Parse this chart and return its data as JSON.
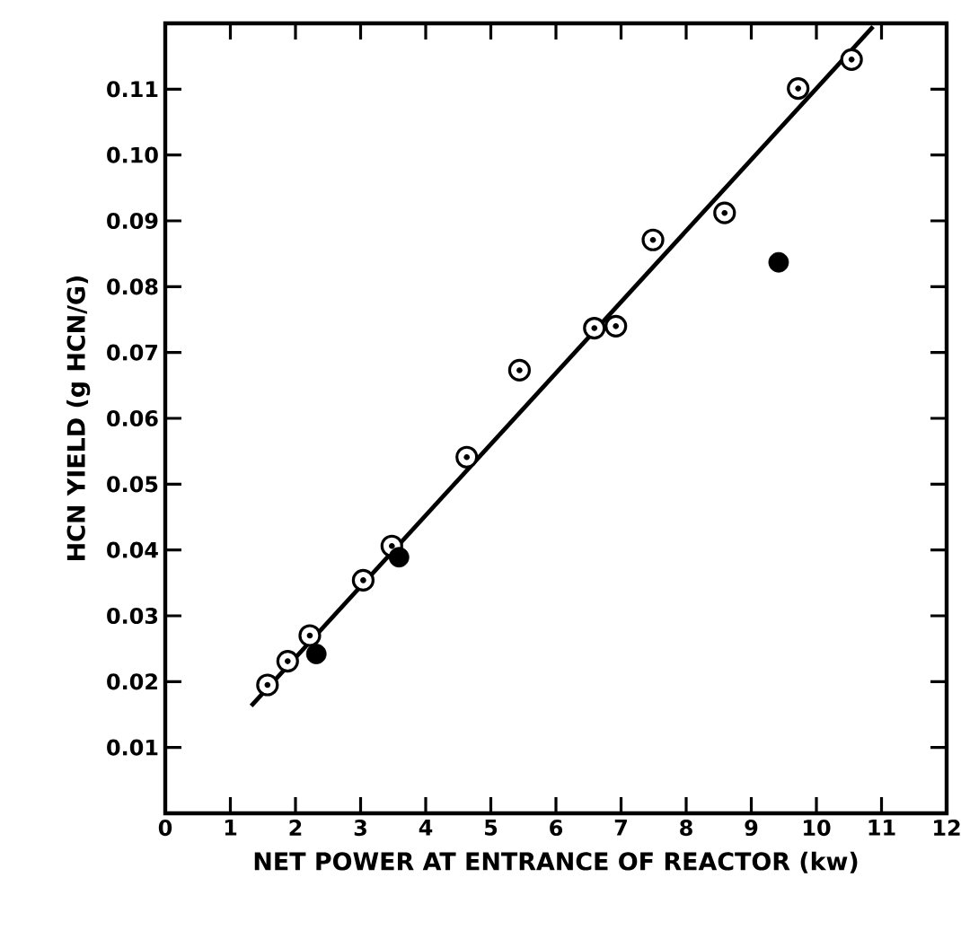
{
  "chart_data": {
    "type": "scatter",
    "xlabel": "NET POWER AT ENTRANCE OF REACTOR (kw)",
    "ylabel": "HCN YIELD (g HCN/G)",
    "xlim": [
      0,
      12
    ],
    "ylim": [
      0,
      0.12
    ],
    "xticks": [
      0,
      1,
      2,
      3,
      4,
      5,
      6,
      7,
      8,
      9,
      10,
      11,
      12
    ],
    "yticks": [
      {
        "value": 0,
        "label": null
      },
      0.01,
      0.02,
      0.03,
      0.04,
      0.05,
      0.06,
      0.07,
      0.08,
      0.09,
      {
        "value": 0.1,
        "label": "0.10"
      },
      0.11
    ],
    "grid": false,
    "marker": "circle",
    "series": [
      {
        "color": "#ffffff",
        "x": [
          1.57,
          1.88,
          2.22,
          3.04,
          3.48,
          4.63,
          5.44,
          6.59,
          6.92,
          7.49,
          8.59,
          9.72,
          10.54
        ],
        "values": [
          0.0195,
          0.0231,
          0.027,
          0.0354,
          0.0406,
          0.0541,
          0.0673,
          0.0737,
          0.074,
          0.0871,
          0.0912,
          0.1101,
          0.1145
        ]
      },
      {
        "color": "#000000",
        "x": [
          2.32,
          3.59,
          9.42
        ],
        "values": [
          0.0242,
          0.0389,
          0.0837
        ]
      },
      {
        "type": "line",
        "color": "#000000",
        "marker": "none",
        "line_style": "solid",
        "x": [
          1.32,
          10.87
        ],
        "values": [
          0.0163,
          0.1195
        ]
      }
    ]
  }
}
